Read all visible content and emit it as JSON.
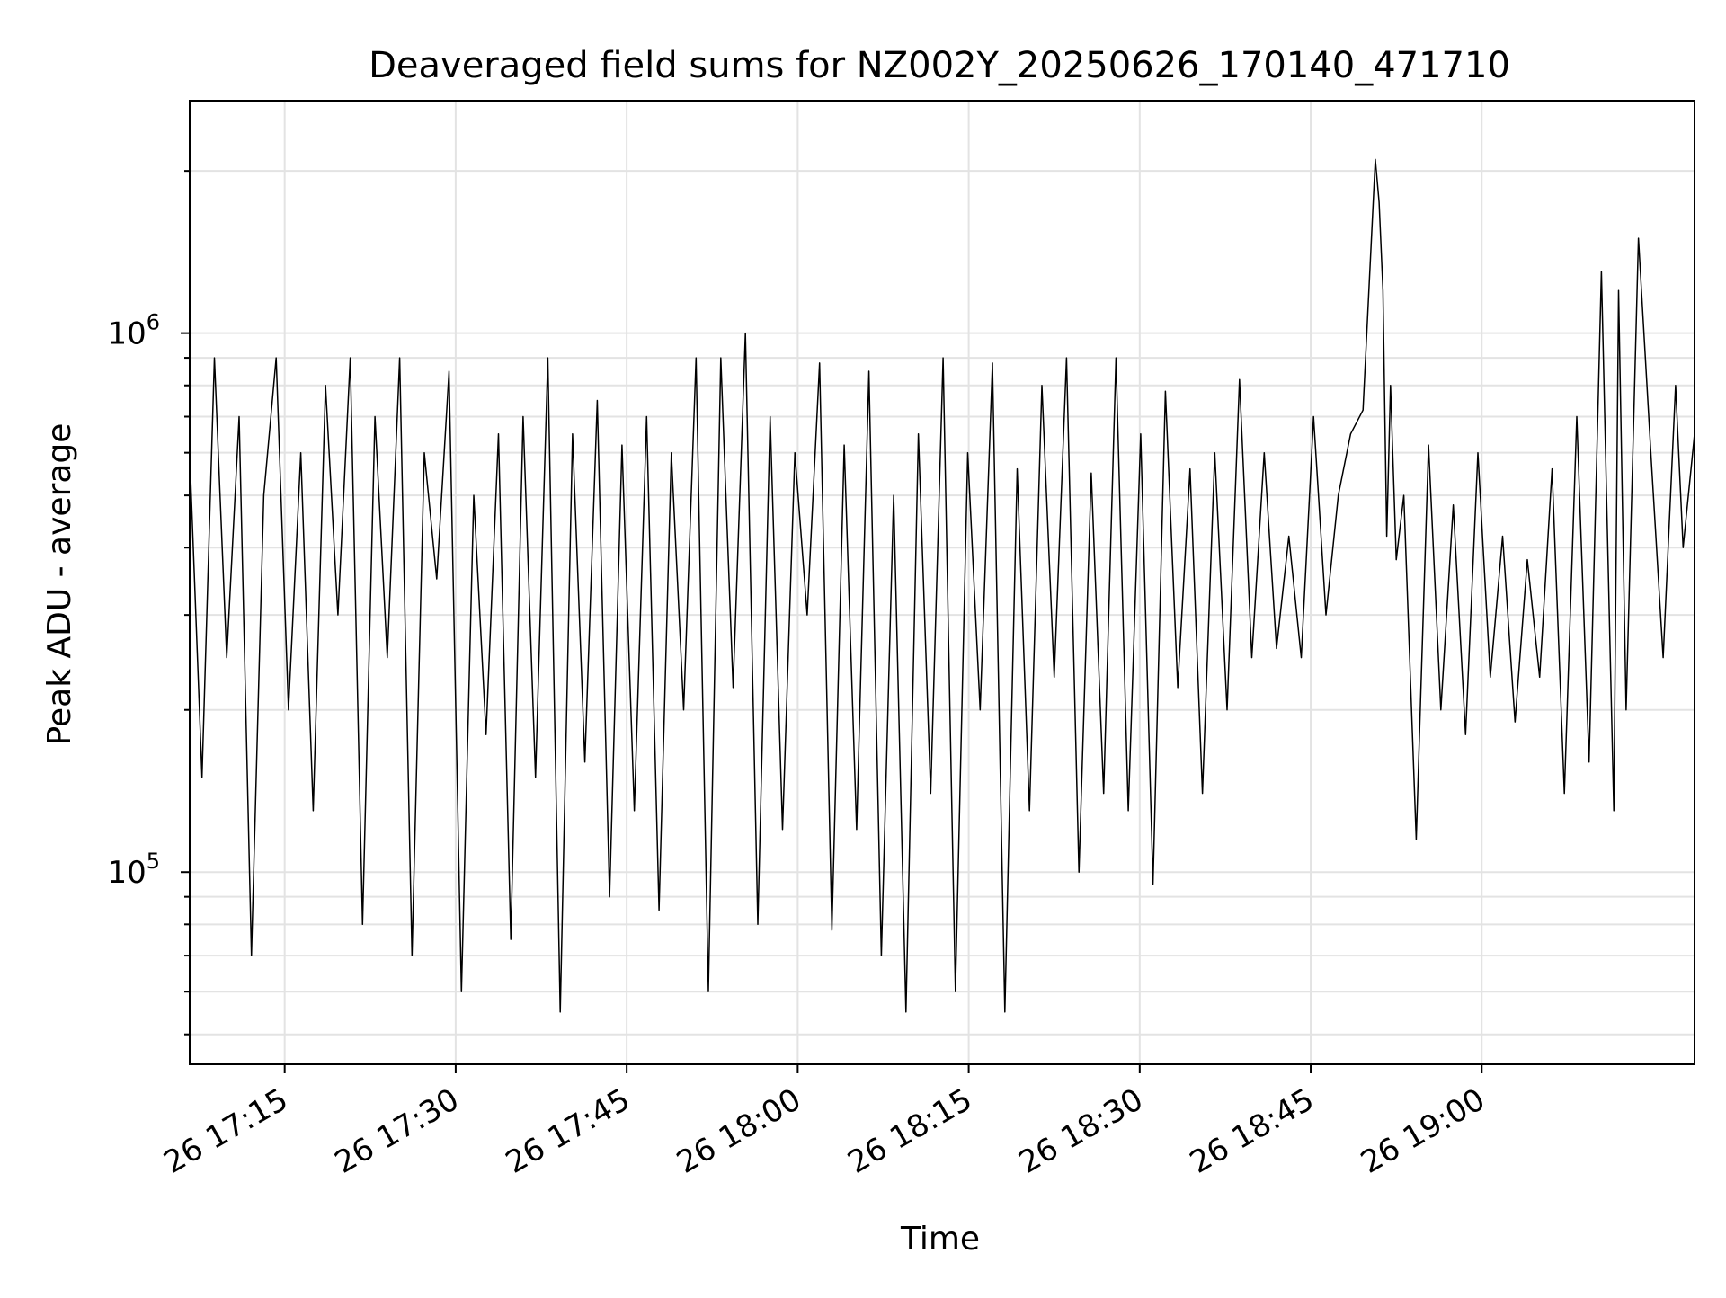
{
  "chart_data": {
    "type": "line",
    "title": "Deaveraged field sums for NZ002Y_20250626_170140_471710",
    "xlabel": "Time",
    "ylabel": "Peak ADU - average",
    "yscale": "log",
    "ylim": [
      44000,
      2700000
    ],
    "xlim": [
      "2025-06-26 17:06:40",
      "2025-06-26 19:18:40"
    ],
    "x_ticks": [
      {
        "value": "2025-06-26 17:15",
        "label": "26 17:15"
      },
      {
        "value": "2025-06-26 17:30",
        "label": "26 17:30"
      },
      {
        "value": "2025-06-26 17:45",
        "label": "26 17:45"
      },
      {
        "value": "2025-06-26 18:00",
        "label": "26 18:00"
      },
      {
        "value": "2025-06-26 18:15",
        "label": "26 18:15"
      },
      {
        "value": "2025-06-26 18:30",
        "label": "26 18:30"
      },
      {
        "value": "2025-06-26 18:45",
        "label": "26 18:45"
      },
      {
        "value": "2025-06-26 19:00",
        "label": "26 19:00"
      }
    ],
    "y_ticks": [
      {
        "value": 100000,
        "base": "10",
        "exp": "5"
      },
      {
        "value": 1000000,
        "base": "10",
        "exp": "6"
      }
    ],
    "grid": true,
    "line_color": "#000000",
    "series": [
      {
        "x": [
          "2025-06-26 17:06:40",
          "2025-06-26 17:07:45",
          "2025-06-26 17:08:50",
          "2025-06-26 17:09:55",
          "2025-06-26 17:11:00",
          "2025-06-26 17:12:05",
          "2025-06-26 17:13:10",
          "2025-06-26 17:14:15",
          "2025-06-26 17:15:20",
          "2025-06-26 17:16:25",
          "2025-06-26 17:17:30",
          "2025-06-26 17:18:35",
          "2025-06-26 17:19:40",
          "2025-06-26 17:20:45",
          "2025-06-26 17:21:50",
          "2025-06-26 17:22:55",
          "2025-06-26 17:24:00",
          "2025-06-26 17:25:05",
          "2025-06-26 17:26:10",
          "2025-06-26 17:27:15",
          "2025-06-26 17:28:20",
          "2025-06-26 17:29:25",
          "2025-06-26 17:30:30",
          "2025-06-26 17:31:35",
          "2025-06-26 17:32:40",
          "2025-06-26 17:33:45",
          "2025-06-26 17:34:50",
          "2025-06-26 17:35:55",
          "2025-06-26 17:37:00",
          "2025-06-26 17:38:05",
          "2025-06-26 17:39:10",
          "2025-06-26 17:40:15",
          "2025-06-26 17:41:20",
          "2025-06-26 17:42:25",
          "2025-06-26 17:43:30",
          "2025-06-26 17:44:35",
          "2025-06-26 17:45:40",
          "2025-06-26 17:46:45",
          "2025-06-26 17:47:50",
          "2025-06-26 17:48:55",
          "2025-06-26 17:50:00",
          "2025-06-26 17:51:05",
          "2025-06-26 17:52:10",
          "2025-06-26 17:53:15",
          "2025-06-26 17:54:20",
          "2025-06-26 17:55:25",
          "2025-06-26 17:56:30",
          "2025-06-26 17:57:35",
          "2025-06-26 17:58:40",
          "2025-06-26 17:59:45",
          "2025-06-26 18:00:50",
          "2025-06-26 18:01:55",
          "2025-06-26 18:03:00",
          "2025-06-26 18:04:05",
          "2025-06-26 18:05:10",
          "2025-06-26 18:06:15",
          "2025-06-26 18:07:20",
          "2025-06-26 18:08:25",
          "2025-06-26 18:09:30",
          "2025-06-26 18:10:35",
          "2025-06-26 18:11:40",
          "2025-06-26 18:12:45",
          "2025-06-26 18:13:50",
          "2025-06-26 18:14:55",
          "2025-06-26 18:16:00",
          "2025-06-26 18:17:05",
          "2025-06-26 18:18:10",
          "2025-06-26 18:19:15",
          "2025-06-26 18:20:20",
          "2025-06-26 18:21:25",
          "2025-06-26 18:22:30",
          "2025-06-26 18:23:35",
          "2025-06-26 18:24:40",
          "2025-06-26 18:25:45",
          "2025-06-26 18:26:50",
          "2025-06-26 18:27:55",
          "2025-06-26 18:29:00",
          "2025-06-26 18:30:05",
          "2025-06-26 18:31:10",
          "2025-06-26 18:32:15",
          "2025-06-26 18:33:20",
          "2025-06-26 18:34:25",
          "2025-06-26 18:35:30",
          "2025-06-26 18:36:35",
          "2025-06-26 18:37:40",
          "2025-06-26 18:38:45",
          "2025-06-26 18:39:50",
          "2025-06-26 18:40:55",
          "2025-06-26 18:42:00",
          "2025-06-26 18:43:05",
          "2025-06-26 18:44:10",
          "2025-06-26 18:45:15",
          "2025-06-26 18:46:20",
          "2025-06-26 18:47:25",
          "2025-06-26 18:48:30",
          "2025-06-26 18:49:35",
          "2025-06-26 18:50:40",
          "2025-06-26 18:51:00",
          "2025-06-26 18:51:20",
          "2025-06-26 18:51:40",
          "2025-06-26 18:52:00",
          "2025-06-26 18:52:30",
          "2025-06-26 18:53:10",
          "2025-06-26 18:54:15",
          "2025-06-26 18:55:20",
          "2025-06-26 18:56:25",
          "2025-06-26 18:57:30",
          "2025-06-26 18:58:35",
          "2025-06-26 18:59:40",
          "2025-06-26 19:00:45",
          "2025-06-26 19:01:50",
          "2025-06-26 19:02:55",
          "2025-06-26 19:04:00",
          "2025-06-26 19:05:05",
          "2025-06-26 19:06:10",
          "2025-06-26 19:07:15",
          "2025-06-26 19:08:20",
          "2025-06-26 19:09:25",
          "2025-06-26 19:10:30",
          "2025-06-26 19:11:35",
          "2025-06-26 19:12:00",
          "2025-06-26 19:12:40",
          "2025-06-26 19:13:45",
          "2025-06-26 19:14:50",
          "2025-06-26 19:15:55",
          "2025-06-26 19:17:00",
          "2025-06-26 19:17:40",
          "2025-06-26 19:18:40"
        ],
        "values": [
          600000,
          150000,
          900000,
          250000,
          700000,
          70000,
          500000,
          900000,
          200000,
          600000,
          130000,
          800000,
          300000,
          900000,
          80000,
          700000,
          250000,
          900000,
          70000,
          600000,
          350000,
          850000,
          60000,
          500000,
          180000,
          650000,
          75000,
          700000,
          150000,
          900000,
          55000,
          650000,
          160000,
          750000,
          90000,
          620000,
          130000,
          700000,
          85000,
          600000,
          200000,
          900000,
          60000,
          900000,
          220000,
          1000000,
          80000,
          700000,
          120000,
          600000,
          300000,
          880000,
          78000,
          620000,
          120000,
          850000,
          70000,
          500000,
          55000,
          650000,
          140000,
          900000,
          60000,
          600000,
          200000,
          880000,
          55000,
          560000,
          130000,
          800000,
          230000,
          900000,
          100000,
          550000,
          140000,
          900000,
          130000,
          650000,
          95000,
          780000,
          220000,
          560000,
          140000,
          600000,
          200000,
          820000,
          250000,
          600000,
          260000,
          420000,
          250000,
          700000,
          300000,
          500000,
          650000,
          720000,
          2100000,
          1750000,
          1200000,
          420000,
          800000,
          380000,
          500000,
          115000,
          620000,
          200000,
          480000,
          180000,
          600000,
          230000,
          420000,
          190000,
          380000,
          230000,
          560000,
          140000,
          700000,
          160000,
          1300000,
          130000,
          1200000,
          200000,
          1500000,
          600000,
          250000,
          800000,
          400000,
          650000
        ]
      }
    ]
  }
}
